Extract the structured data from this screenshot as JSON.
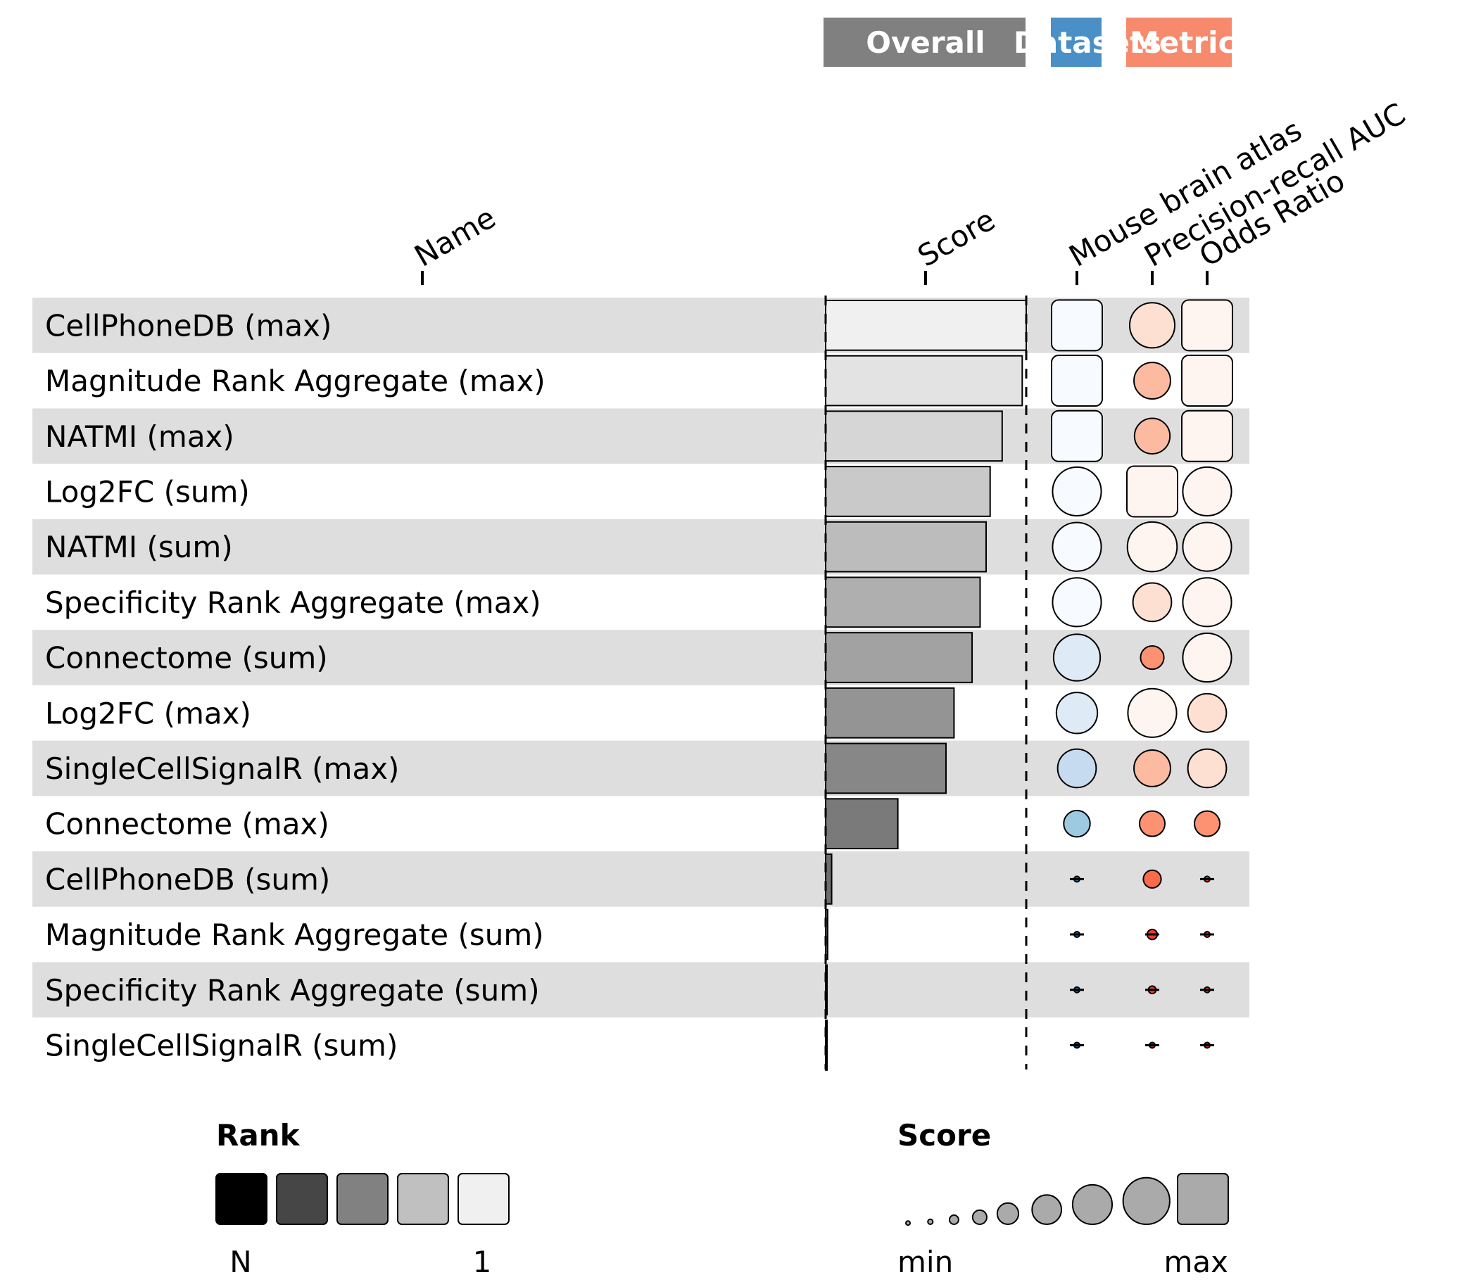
{
  "chart_data": {
    "type": "table",
    "column_groups": [
      {
        "label": "Overall",
        "color": "#808080"
      },
      {
        "label": "Datasets",
        "color": "#4a90c6"
      },
      {
        "label": "Metric",
        "color": "#f7896d"
      }
    ],
    "columns": {
      "name": "Name",
      "score": "Score",
      "dataset": "Mouse brain atlas",
      "metric1": "Precision-recall AUC",
      "metric2": "Odds Ratio"
    },
    "rows": [
      {
        "name": "CellPhoneDB (max)",
        "score": 1.0,
        "rank": 1,
        "dataset": 1.0,
        "auc": 0.89,
        "or": 1.0
      },
      {
        "name": "Magnitude Rank Aggregate (max)",
        "score": 0.98,
        "rank": 2,
        "dataset": 1.0,
        "auc": 0.72,
        "or": 1.0
      },
      {
        "name": "NATMI (max)",
        "score": 0.88,
        "rank": 3,
        "dataset": 1.0,
        "auc": 0.7,
        "or": 1.0
      },
      {
        "name": "Log2FC (sum)",
        "score": 0.82,
        "rank": 4,
        "dataset": 0.96,
        "auc": 1.0,
        "or": 0.96
      },
      {
        "name": "NATMI (sum)",
        "score": 0.8,
        "rank": 5,
        "dataset": 0.96,
        "auc": 0.98,
        "or": 0.96
      },
      {
        "name": "Specificity Rank Aggregate (max)",
        "score": 0.77,
        "rank": 6,
        "dataset": 0.96,
        "auc": 0.76,
        "or": 0.96
      },
      {
        "name": "Connectome (sum)",
        "score": 0.73,
        "rank": 7,
        "dataset": 0.92,
        "auc": 0.46,
        "or": 0.96
      },
      {
        "name": "Log2FC (max)",
        "score": 0.64,
        "rank": 8,
        "dataset": 0.81,
        "auc": 0.96,
        "or": 0.76
      },
      {
        "name": "SingleCellSignalR (max)",
        "score": 0.6,
        "rank": 9,
        "dataset": 0.76,
        "auc": 0.72,
        "or": 0.76
      },
      {
        "name": "Connectome (max)",
        "score": 0.36,
        "rank": 10,
        "dataset": 0.52,
        "auc": 0.5,
        "or": 0.5
      },
      {
        "name": "CellPhoneDB (sum)",
        "score": 0.03,
        "rank": 11,
        "dataset": 0.1,
        "auc": 0.35,
        "or": 0.1
      },
      {
        "name": "Magnitude Rank Aggregate (sum)",
        "score": 0.01,
        "rank": 12,
        "dataset": 0.1,
        "auc": 0.2,
        "or": 0.1
      },
      {
        "name": "Specificity Rank Aggregate (sum)",
        "score": 0.005,
        "rank": 13,
        "dataset": 0.08,
        "auc": 0.15,
        "or": 0.1
      },
      {
        "name": "SingleCellSignalR (sum)",
        "score": 0.003,
        "rank": 14,
        "dataset": 0.06,
        "auc": 0.05,
        "or": 0.06
      }
    ],
    "legend": {
      "rank": {
        "title": "Rank",
        "low_label": "N",
        "high_label": "1",
        "colors": [
          "#000000",
          "#464646",
          "#818181",
          "#c0c0c0",
          "#f0f0f0"
        ]
      },
      "score": {
        "title": "Score",
        "low_label": "min",
        "high_label": "max",
        "color": "#aaaaaa"
      }
    },
    "colors": {
      "row_stripe": "#dedede",
      "blues": [
        "#f7fbff",
        "#deebf7",
        "#c6dbef",
        "#9ecae1",
        "#6baed6",
        "#4292c6",
        "#2171b5",
        "#08519c"
      ],
      "reds": [
        "#fff5f0",
        "#fee0d2",
        "#fcbba1",
        "#fc9272",
        "#fb6a4a",
        "#ef3b2c",
        "#cb181d"
      ]
    }
  }
}
